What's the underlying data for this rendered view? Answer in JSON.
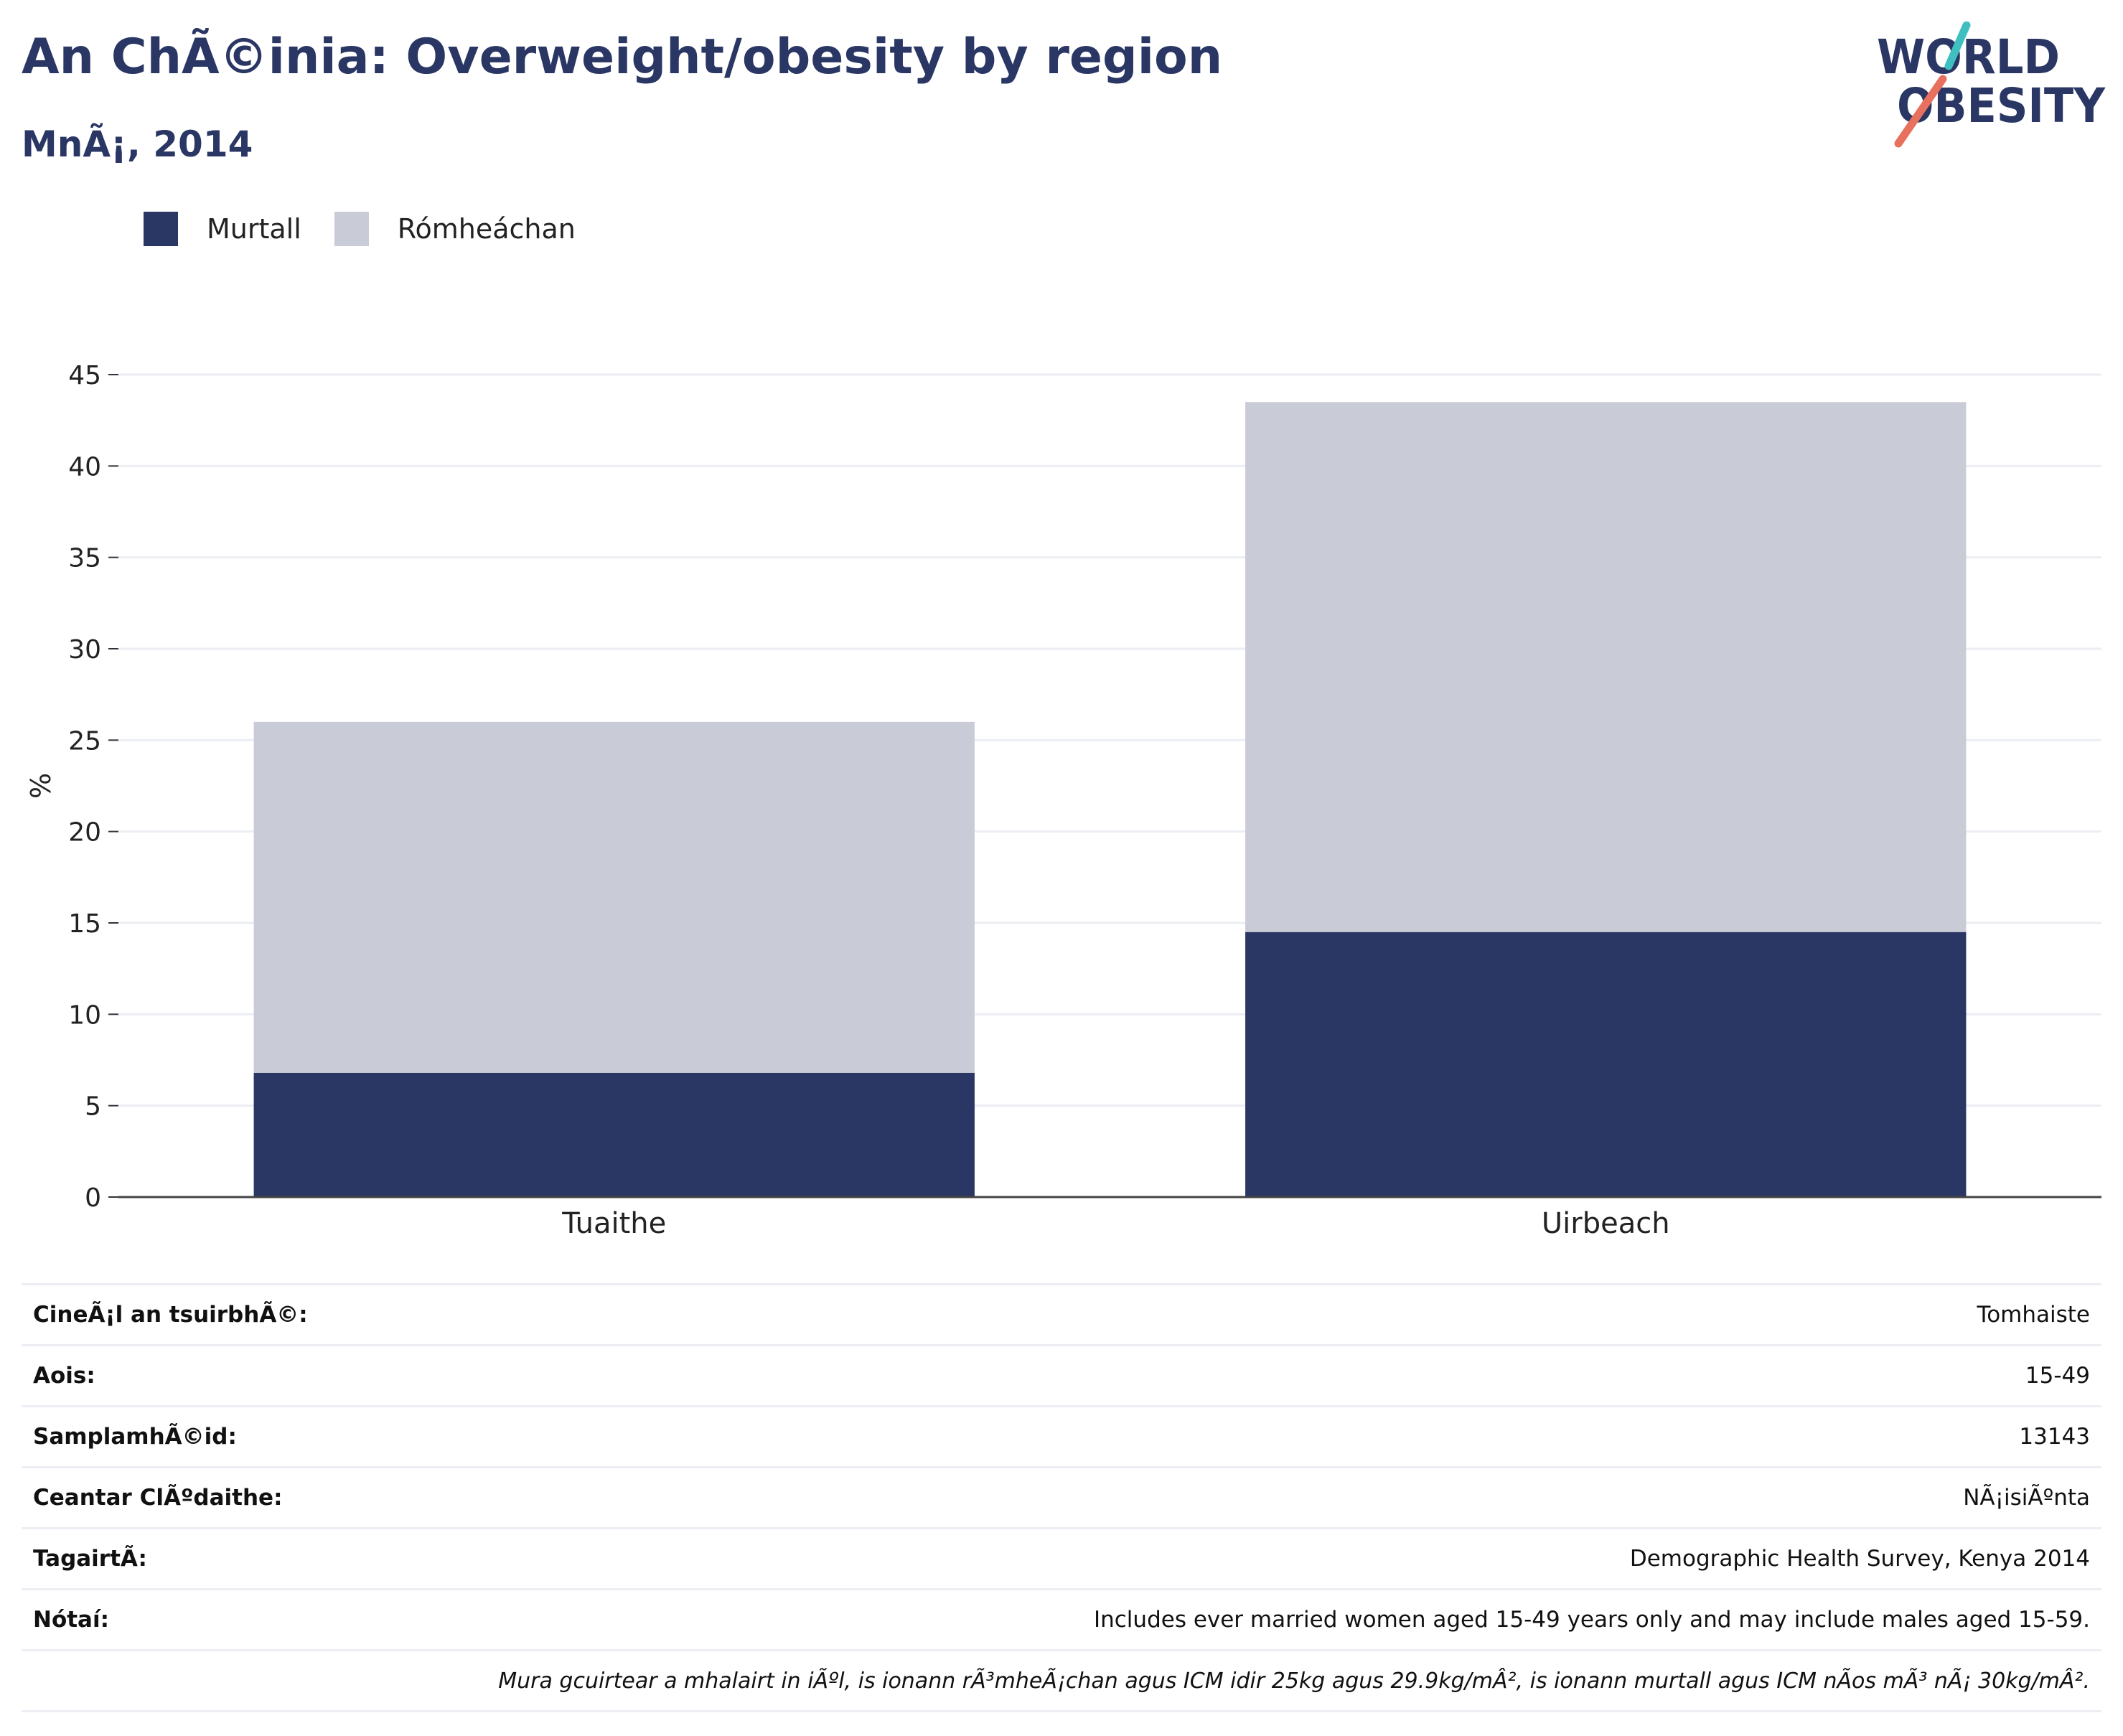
{
  "header": {
    "title": "An ChÃ©inia: Overweight/obesity by region",
    "subtitle": "MnÃ¡, 2014"
  },
  "logo": {
    "line1": "WORLD",
    "line2": "OBESITY",
    "colors": {
      "text": "#2a3663",
      "slash_top": "#3fbfbf",
      "slash_bottom": "#e8705f"
    }
  },
  "legend": [
    {
      "label": "Murtall",
      "color": "#2a3663"
    },
    {
      "label": "Rómheáchan",
      "color": "#c9ccd7"
    }
  ],
  "chart_data": {
    "type": "bar",
    "stacked": true,
    "categories": [
      "Tuaithe",
      "Uirbeach"
    ],
    "series": [
      {
        "name": "Murtall",
        "values": [
          6.8,
          14.5
        ],
        "color": "#2a3663"
      },
      {
        "name": "Rómheáchan",
        "values": [
          19.2,
          29.0
        ],
        "color": "#c9ccd7"
      }
    ],
    "ylabel": "%",
    "ylim": [
      0,
      45
    ],
    "yticks": [
      0,
      5,
      10,
      15,
      20,
      25,
      30,
      35,
      40,
      45
    ],
    "grid": true,
    "legend_position": "top-left"
  },
  "info": [
    {
      "label": "CineÃ¡l an tsuirbhÃ©:",
      "value": "Tomhaiste"
    },
    {
      "label": "Aois:",
      "value": "15-49"
    },
    {
      "label": "SamplamhÃ©id:",
      "value": "13143"
    },
    {
      "label": "Ceantar ClÃºdaithe:",
      "value": "NÃ¡isiÃºnta"
    },
    {
      "label": "TagairtÃ:",
      "value": "Demographic Health Survey, Kenya 2014"
    },
    {
      "label": "Nótaí:",
      "value": "Includes ever married women aged 15-49 years only and may include males aged 15-59."
    }
  ],
  "footnote": "Mura gcuirtear a mhalairt in iÃºl, is ionann rÃ³mheÃ¡chan agus ICM idir 25kg agus 29.9kg/mÂ², is ionann murtall agus ICM nÃos mÃ³ nÃ¡ 30kg/mÂ²."
}
